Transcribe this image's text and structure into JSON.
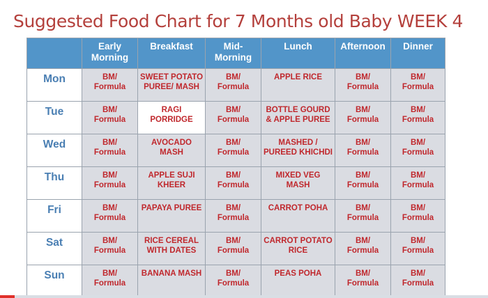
{
  "title": "Suggested Food Chart for 7 Months old Baby WEEK 4",
  "columns": [
    "Early\nMorning",
    "Breakfast",
    "Mid-\nMorning",
    "Lunch",
    "Afternoon",
    "Dinner"
  ],
  "rows": [
    {
      "day": "Mon",
      "cells": [
        "BM/\nFormula",
        "SWEET POTATO\nPUREE/ MASH",
        "BM/\nFormula",
        "APPLE RICE",
        "BM/\nFormula",
        "BM/\nFormula"
      ]
    },
    {
      "day": "Tue",
      "cells": [
        "BM/\nFormula",
        "RAGI\nPORRIDGE",
        "BM/\nFormula",
        "BOTTLE GOURD\n& APPLE PUREE",
        "BM/\nFormula",
        "BM/\nFormula"
      ]
    },
    {
      "day": "Wed",
      "cells": [
        "BM/\nFormula",
        "AVOCADO\nMASH",
        "BM/\nFormula",
        "MASHED /\nPUREED KHICHDI",
        "BM/\nFormula",
        "BM/\nFormula"
      ]
    },
    {
      "day": "Thu",
      "cells": [
        "BM/\nFormula",
        "APPLE SUJI\nKHEER",
        "BM/\nFormula",
        "MIXED VEG\nMASH",
        "BM/\nFormula",
        "BM/\nFormula"
      ]
    },
    {
      "day": "Fri",
      "cells": [
        "BM/\nFormula",
        "PAPAYA PUREE",
        "BM/\nFormula",
        "CARROT POHA",
        "BM/\nFormula",
        "BM/\nFormula"
      ]
    },
    {
      "day": "Sat",
      "cells": [
        "BM/\nFormula",
        "RICE CEREAL\nWITH DATES",
        "BM/\nFormula",
        "CARROT POTATO\nRICE",
        "BM/\nFormula",
        "BM/\nFormula"
      ]
    },
    {
      "day": "Sun",
      "cells": [
        "BM/\nFormula",
        "BANANA MASH",
        "BM/\nFormula",
        "PEAS POHA",
        "BM/\nFormula",
        "BM/\nFormula"
      ]
    }
  ],
  "video_progress": 0.03,
  "colors": {
    "title": "#b4403c",
    "header": "#5295c9",
    "cell_bg": "#dadce2",
    "cell_text": "#c0282d",
    "day_text": "#4a7fb3",
    "progress": "#e0302a"
  }
}
